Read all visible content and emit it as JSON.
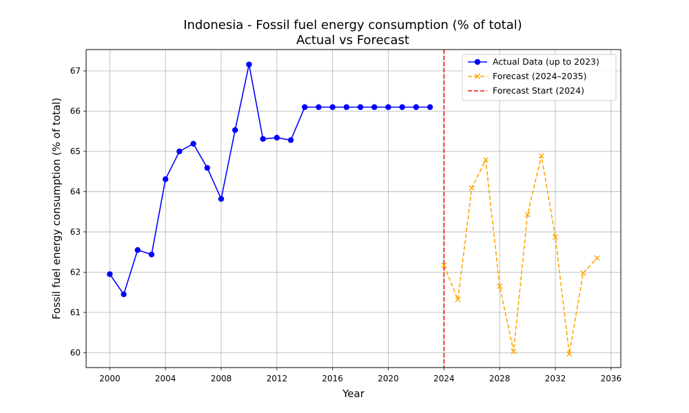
{
  "chart_data": {
    "type": "line",
    "title": "Indonesia - Fossil fuel energy consumption (% of total)",
    "subtitle": "Actual vs Forecast",
    "xlabel": "Year",
    "ylabel": "Fossil fuel energy consumption (% of total)",
    "xlim": [
      1998.3,
      2036.7
    ],
    "ylim": [
      59.63,
      67.53
    ],
    "xticks": [
      2000,
      2004,
      2008,
      2012,
      2016,
      2020,
      2024,
      2028,
      2032,
      2036
    ],
    "yticks": [
      60,
      61,
      62,
      63,
      64,
      65,
      66,
      67
    ],
    "grid": true,
    "legend_position": "top-right",
    "series": [
      {
        "name": "Actual Data (up to 2023)",
        "color": "#0000ff",
        "style": "solid",
        "marker": "circle",
        "x": [
          2000,
          2001,
          2002,
          2003,
          2004,
          2005,
          2006,
          2007,
          2008,
          2009,
          2010,
          2011,
          2012,
          2013,
          2014,
          2015,
          2016,
          2017,
          2018,
          2019,
          2020,
          2021,
          2022,
          2023
        ],
        "y": [
          61.95,
          61.45,
          62.55,
          62.44,
          64.31,
          65.0,
          65.19,
          64.59,
          63.82,
          65.53,
          67.16,
          65.31,
          65.34,
          65.28,
          66.1,
          66.1,
          66.1,
          66.1,
          66.1,
          66.1,
          66.1,
          66.1,
          66.1,
          66.1
        ]
      },
      {
        "name": "Forecast (2024–2035)",
        "color": "#ffa500",
        "style": "dashed",
        "marker": "x",
        "x": [
          2024,
          2025,
          2026,
          2027,
          2028,
          2029,
          2030,
          2031,
          2032,
          2033,
          2034,
          2035
        ],
        "y": [
          62.17,
          61.32,
          64.09,
          64.79,
          61.65,
          60.03,
          63.43,
          64.89,
          62.87,
          59.97,
          61.98,
          62.35
        ]
      }
    ],
    "vlines": [
      {
        "name": "Forecast Start (2024)",
        "x": 2024,
        "color": "#ff0000",
        "style": "dashed"
      }
    ]
  }
}
